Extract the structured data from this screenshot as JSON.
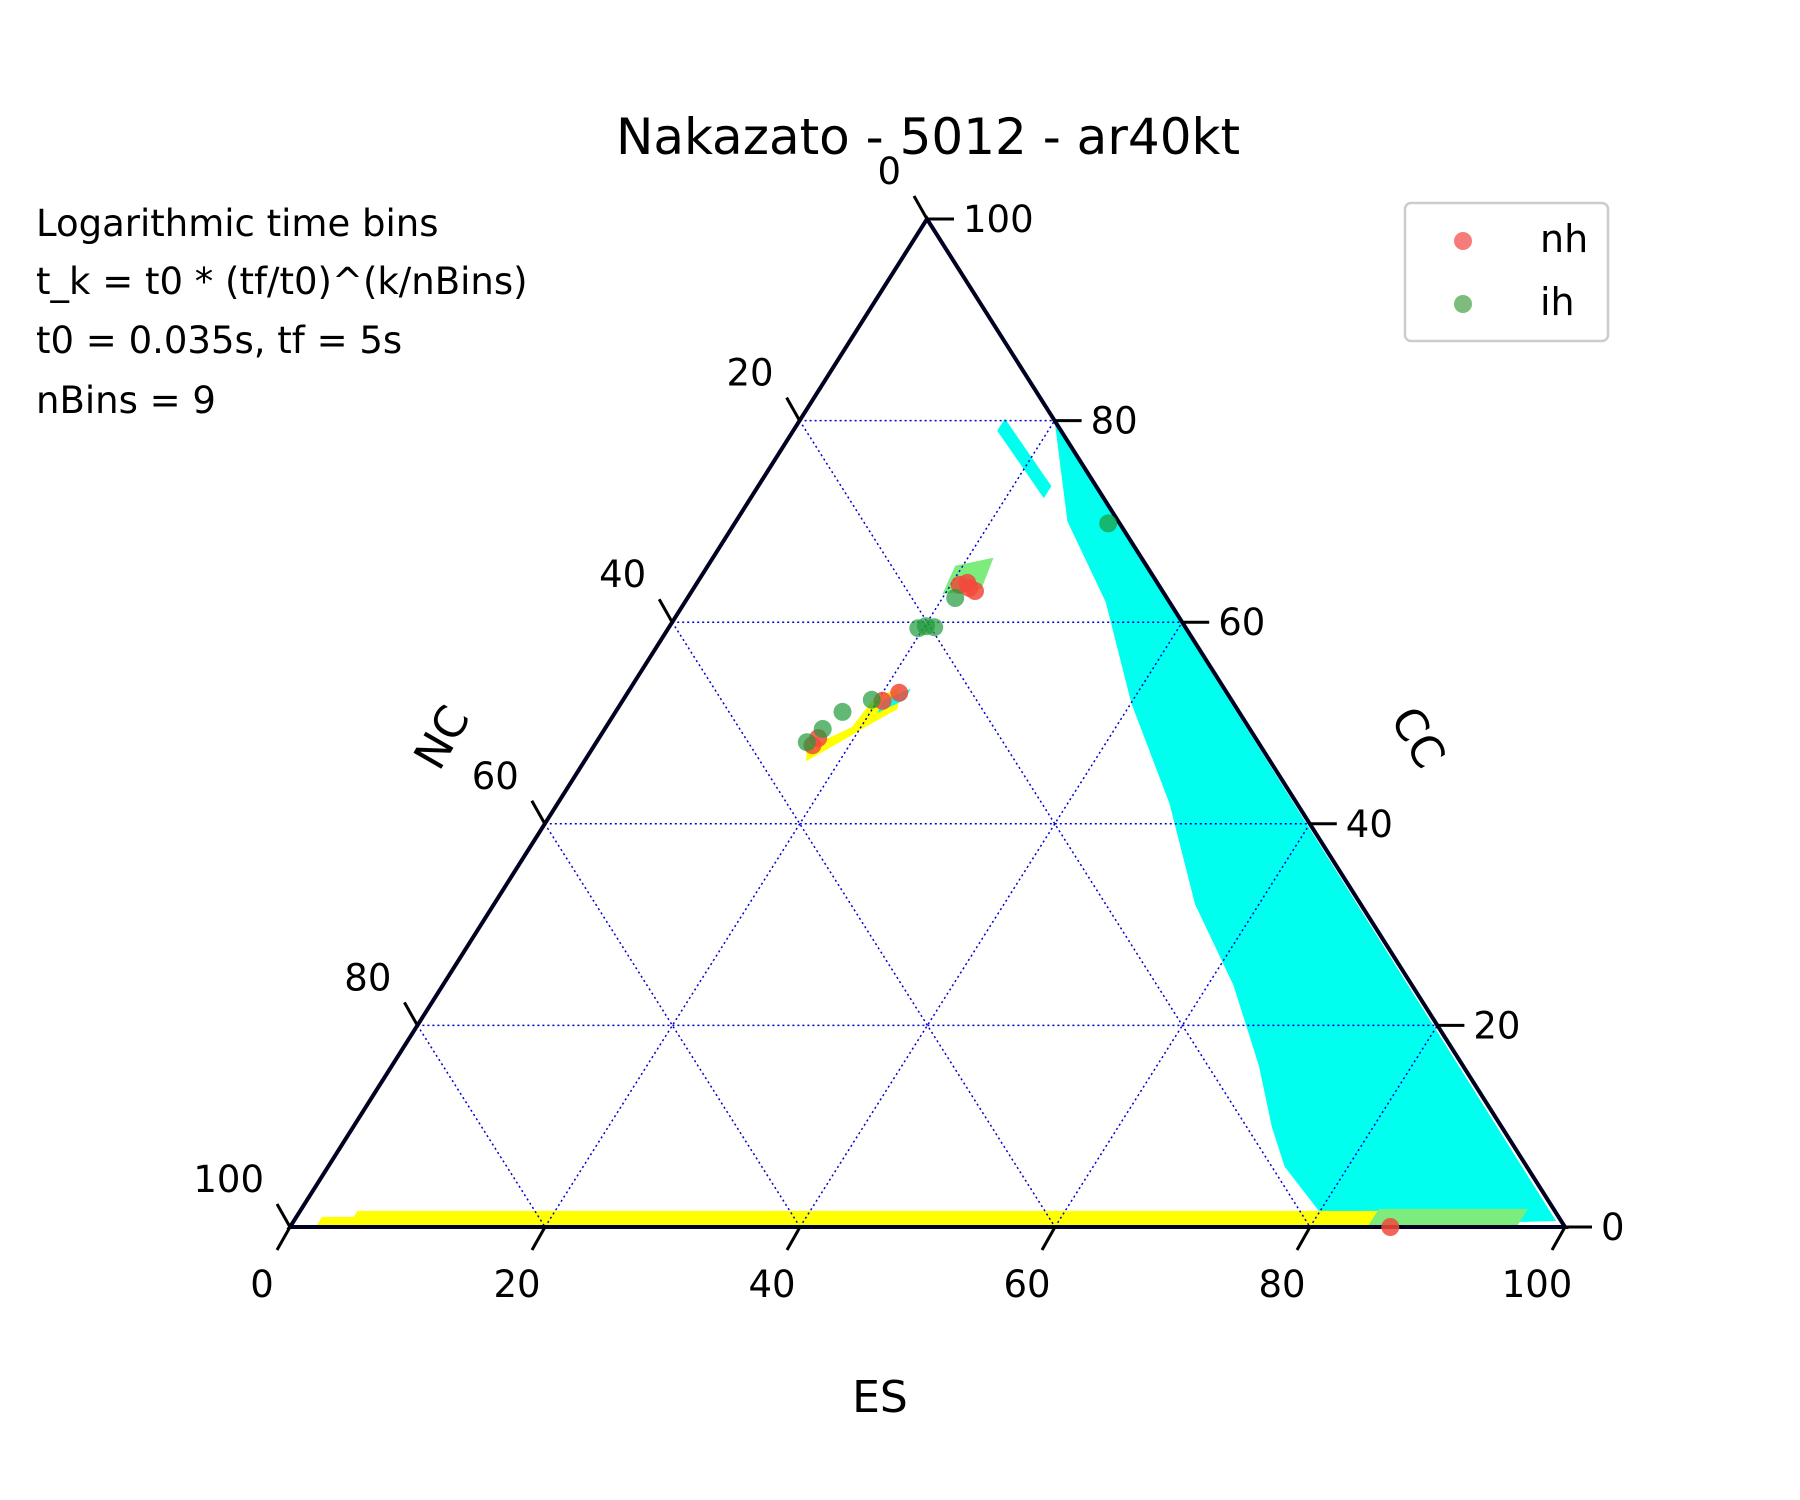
{
  "chart_data": {
    "type": "scatter",
    "subtype": "ternary",
    "title": "Nakazato - 5012 - ar40kt",
    "annotation_lines": [
      "Logarithmic time bins",
      "t_k = t0 * (tf/t0)^(k/nBins)",
      "t0 = 0.035s, tf = 5s",
      "nBins = 9"
    ],
    "axes": {
      "bottom": {
        "label": "ES",
        "ticks": [
          "0",
          "20",
          "40",
          "60",
          "80",
          "100"
        ]
      },
      "left": {
        "label": "NC",
        "ticks": [
          "0",
          "20",
          "40",
          "60",
          "80",
          "100"
        ]
      },
      "right": {
        "label": "CC",
        "ticks": [
          "0",
          "20",
          "40",
          "60",
          "80",
          "100"
        ]
      }
    },
    "grid": true,
    "legend_position": "top-right",
    "series": [
      {
        "name": "nh",
        "color": "#f77b7b",
        "points": [
          {
            "ES": 22.2,
            "NC": 14.7,
            "CC": 63.1
          },
          {
            "ES": 21.6,
            "NC": 15.0,
            "CC": 63.4
          },
          {
            "ES": 21.2,
            "NC": 14.9,
            "CC": 63.9
          },
          {
            "ES": 20.7,
            "NC": 15.6,
            "CC": 63.7
          },
          {
            "ES": 21.3,
            "NC": 25.7,
            "CC": 53.0
          },
          {
            "ES": 20.4,
            "NC": 27.4,
            "CC": 52.2
          },
          {
            "ES": 17.2,
            "NC": 34.3,
            "CC": 48.5
          },
          {
            "ES": 17.1,
            "NC": 35.1,
            "CC": 47.8
          },
          {
            "ES": 86.3,
            "NC": 13.7,
            "CC": 0.0
          }
        ]
      },
      {
        "name": "ih",
        "color": "#7cbc7c",
        "points": [
          {
            "ES": 21.0,
            "NC": 16.6,
            "CC": 62.4
          },
          {
            "ES": 20.8,
            "NC": 19.7,
            "CC": 59.5
          },
          {
            "ES": 20.1,
            "NC": 20.3,
            "CC": 59.6
          },
          {
            "ES": 19.6,
            "NC": 21.0,
            "CC": 59.4
          },
          {
            "ES": 19.5,
            "NC": 28.2,
            "CC": 52.3
          },
          {
            "ES": 17.8,
            "NC": 31.1,
            "CC": 51.1
          },
          {
            "ES": 17.1,
            "NC": 33.5,
            "CC": 49.4
          },
          {
            "ES": 16.5,
            "NC": 35.4,
            "CC": 48.1
          },
          {
            "ES": 29.3,
            "NC": 0.9,
            "CC": 69.8
          }
        ]
      }
    ],
    "regions": [
      {
        "color": "#00ffee"
      },
      {
        "color": "#ffff00"
      },
      {
        "color": "#7cec7c"
      }
    ]
  }
}
